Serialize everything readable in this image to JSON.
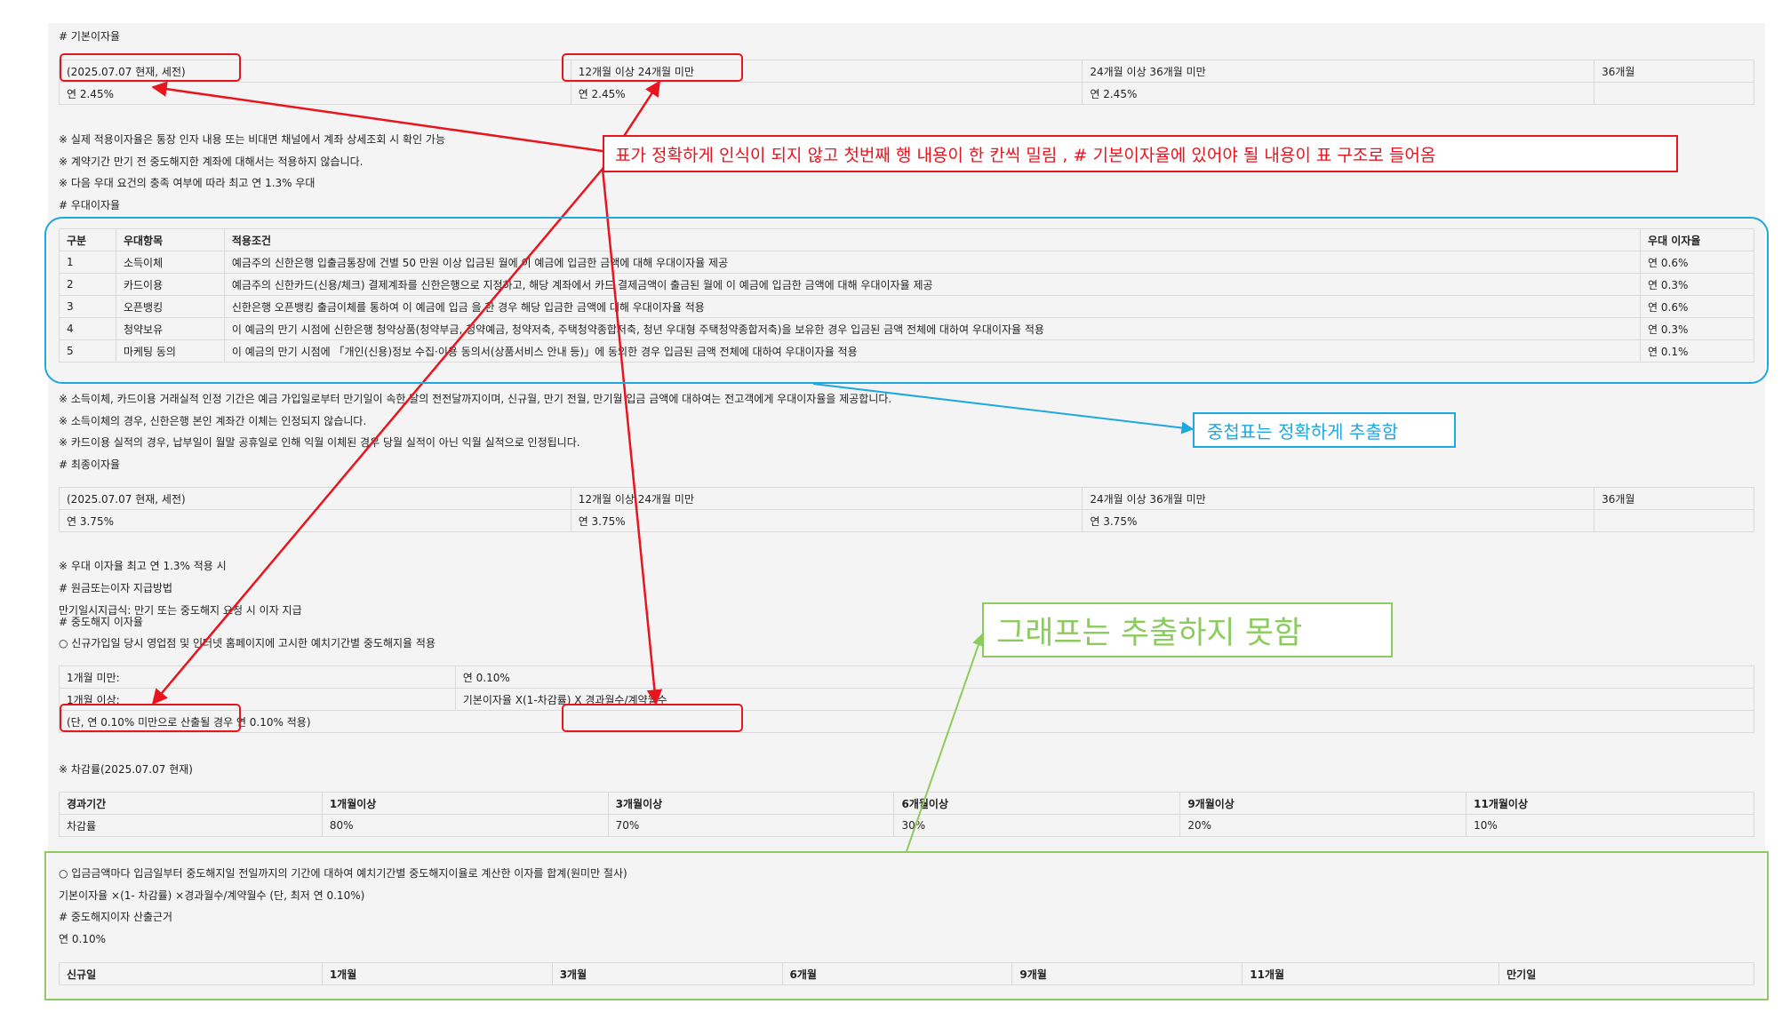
{
  "document": {
    "base_rate_heading": "# 기본이자율",
    "base_rate_table": {
      "headers": [
        "(2025.07.07 현재, 세전)",
        "12개월 이상 24개월 미만",
        "24개월 이상 36개월 미만",
        "36개월"
      ],
      "row": [
        "연 2.45%",
        "연 2.45%",
        "연 2.45%",
        ""
      ]
    },
    "notes_1": [
      "※ 실제 적용이자율은 통장 인자 내용 또는 비대면 채널에서 계좌 상세조회 시 확인 가능",
      "※ 계약기간 만기 전 중도해지한 계좌에 대해서는 적용하지 않습니다.",
      "※ 다음 우대 요건의 충족 여부에 따라 최고 연 1.3% 우대"
    ],
    "pref_heading": "# 우대이자율",
    "pref_table": {
      "headers": [
        "구분",
        "우대항목",
        "적용조건",
        "우대 이자율"
      ],
      "rows": [
        [
          "1",
          "소득이체",
          "예금주의 신한은행 입출금통장에 건별 50 만원 이상 입금된 월에 이 예금에 입금한 금액에 대해 우대이자율 제공",
          "연 0.6%"
        ],
        [
          "2",
          "카드이용",
          "예금주의 신한카드(신용/체크) 결제계좌를 신한은행으로 지정하고, 해당 계좌에서 카드 결제금액이 출금된 월에 이 예금에 입금한 금액에 대해 우대이자율 제공",
          "연 0.3%"
        ],
        [
          "3",
          "오픈뱅킹",
          "신한은행 오픈뱅킹 출금이체를 통하여 이 예금에 입금 을 한 경우 해당 입금한 금액에 대해 우대이자율 적용",
          "연 0.6%"
        ],
        [
          "4",
          "청약보유",
          "이 예금의 만기 시점에 신한은행 청약상품(청약부금, 청약예금, 청약저축, 주택청약종합저축, 청년 우대형 주택청약종합저축)을 보유한 경우 입금된 금액 전체에 대하여 우대이자율 적용",
          "연 0.3%"
        ],
        [
          "5",
          "마케팅 동의",
          "이 예금의 만기 시점에 「개인(신용)정보 수집·이용 동의서(상품서비스 안내 등)」에 동의한 경우 입금된 금액 전체에 대하여 우대이자율 적용",
          "연 0.1%"
        ]
      ]
    },
    "notes_2": [
      "※ 소득이체, 카드이용 거래실적 인정 기간은 예금 가입일로부터 만기일이 속한 달의 전전달까지이며, 신규월, 만기 전월, 만기월 입금 금액에 대하여는 전고객에게 우대이자율을 제공합니다.",
      "※ 소득이체의 경우, 신한은행 본인 계좌간 이체는 인정되지 않습니다.",
      "※ 카드이용 실적의 경우, 납부일이 월말 공휴일로 인해 익월 이체된 경우 당월 실적이 아닌 익월 실적으로 인정됩니다."
    ],
    "final_heading": "# 최종이자율",
    "final_table": {
      "headers": [
        "(2025.07.07 현재, 세전)",
        "12개월 이상 24개월 미만",
        "24개월 이상 36개월 미만",
        "36개월"
      ],
      "row": [
        "연 3.75%",
        "연 3.75%",
        "연 3.75%",
        ""
      ]
    },
    "note_max": "※ 우대 이자율 최고 연 1.3% 적용 시",
    "payment_heading": "# 원금또는이자 지급방법",
    "payment_text": "만기일시지급식: 만기 또는 중도해지 요청 시 이자 지급",
    "early_heading": "# 중도해지 이자율",
    "early_bullet": "○ 신규가입일 당시 영업점 및 인터넷 홈페이지에 고시한 예치기간별 중도해지율 적용",
    "early_table": {
      "rows": [
        [
          "1개월 미만:",
          "연 0.10%"
        ],
        [
          "1개월 이상:",
          "기본이자율 X(1-차감률) X 경과월수/계약월수"
        ],
        [
          "(단, 연 0.10% 미만으로 산출될 경우 연 0.10% 적용)",
          ""
        ]
      ]
    },
    "deduction_heading": "※ 차감률(2025.07.07 현재)",
    "deduction_table": {
      "headers": [
        "경과기간",
        "1개월이상",
        "3개월이상",
        "6개월이상",
        "9개월이상",
        "11개월이상"
      ],
      "row": [
        "차감률",
        "80%",
        "70%",
        "30%",
        "20%",
        "10%"
      ]
    },
    "bottom_lines": [
      "○ 입금금액마다 입금일부터 중도해지일 전일까지의 기간에 대하여 예치기간별 중도해지이율로 계산한 이자를 합계(원미만 절사)",
      "기본이자율 ×(1- 차감률) ×경과월수/계약월수 (단, 최저 연 0.10%)",
      "# 중도해지이자 산출근거",
      "연 0.10%"
    ],
    "basis_table": {
      "headers": [
        "신규일",
        "1개월",
        "3개월",
        "6개월",
        "9개월",
        "11개월",
        "만기일"
      ]
    }
  },
  "annotations": {
    "red_note": "표가 정확하게 인식이 되지 않고 첫번째 행 내용이 한 칸씩 밀림 , # 기본이자율에 있어야 될 내용이 표 구조로 들어옴",
    "blue_note": "중첩표는 정확하게 추출함",
    "green_note": "그래프는 추출하지 못함",
    "colors": {
      "red": "#e8141e",
      "blue": "#1ea8e0",
      "green": "#8ccb5e"
    }
  }
}
